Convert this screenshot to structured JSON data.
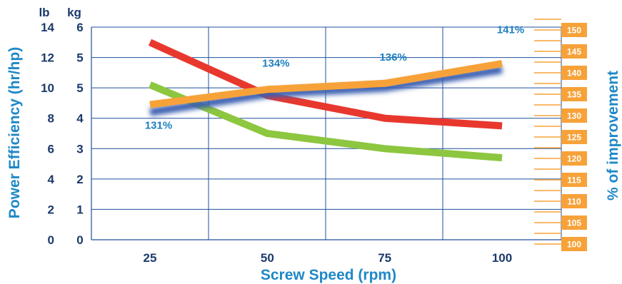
{
  "chart_data": {
    "type": "line",
    "xlabel": "Screw Speed (rpm)",
    "ylabel": "Power Efficiency (hr/hp)",
    "y2label": "% of improvement",
    "y_units": [
      "lb",
      "kg"
    ],
    "categories": [
      "25",
      "50",
      "75",
      "100"
    ],
    "x": [
      25,
      50,
      75,
      100
    ],
    "ylim": [
      0,
      14
    ],
    "y_ticks_lb": [
      "0",
      "2",
      "4",
      "6",
      "8",
      "10",
      "12",
      "14"
    ],
    "y_ticks_kg": [
      "0",
      "1",
      "2",
      "3",
      "4",
      "5",
      "5",
      "6"
    ],
    "y2lim": [
      100,
      150
    ],
    "y2_ticks": [
      "100",
      "105",
      "110",
      "115",
      "120",
      "125",
      "130",
      "135",
      "140",
      "145",
      "150"
    ],
    "grid": true,
    "series": [
      {
        "color": "#e8382e",
        "axis": "left",
        "values": [
          13.0,
          9.5,
          8.0,
          7.5
        ]
      },
      {
        "color": "#8dc63f",
        "axis": "left",
        "values": [
          10.2,
          7.0,
          6.0,
          5.4
        ]
      },
      {
        "color": "#3a5fb0",
        "axis": "left",
        "values": [
          8.4,
          9.6,
          10.0,
          11.2
        ]
      },
      {
        "color": "#f7a239",
        "axis": "left",
        "values": [
          8.9,
          9.9,
          10.3,
          11.6
        ]
      }
    ],
    "annotations": [
      {
        "text": "131%",
        "x": 25,
        "y": 7.3
      },
      {
        "text": "134%",
        "x": 50,
        "y": 11.4
      },
      {
        "text": "136%",
        "x": 75,
        "y": 11.8
      },
      {
        "text": "141%",
        "x": 100,
        "y": 13.6
      }
    ]
  }
}
